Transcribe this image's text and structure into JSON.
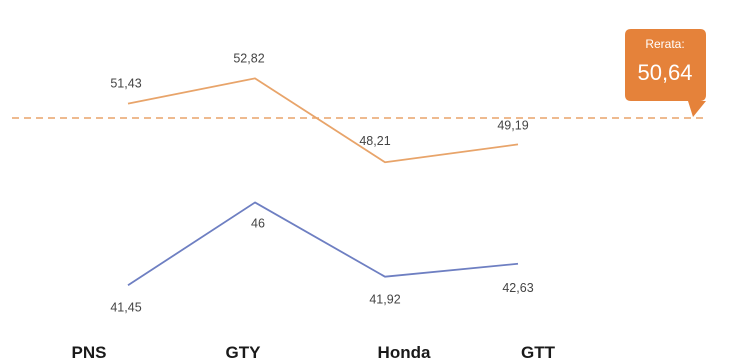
{
  "chart_data": {
    "type": "line",
    "title": "",
    "xlabel": "",
    "ylabel": "",
    "categories": [
      "PNS",
      "GTY",
      "Honda",
      "GTT"
    ],
    "series": [
      {
        "values": [
          51.43,
          52.82,
          48.21,
          49.19
        ],
        "labels": [
          "51,43",
          "52,82",
          "48,21",
          "49,19"
        ],
        "color": "#E8A46A"
      },
      {
        "values": [
          41.45,
          46,
          41.92,
          42.63
        ],
        "labels": [
          "41,45",
          "46",
          "41,92",
          "42,63"
        ],
        "color": "#6E7FC2"
      }
    ],
    "reference_line": {
      "value": 50.64,
      "color": "#E8A46A",
      "style": "dashed"
    },
    "callout": {
      "title": "Rerata:",
      "value_text": "50,64",
      "color": "#E5823A"
    },
    "grid": false,
    "legend": "none"
  }
}
